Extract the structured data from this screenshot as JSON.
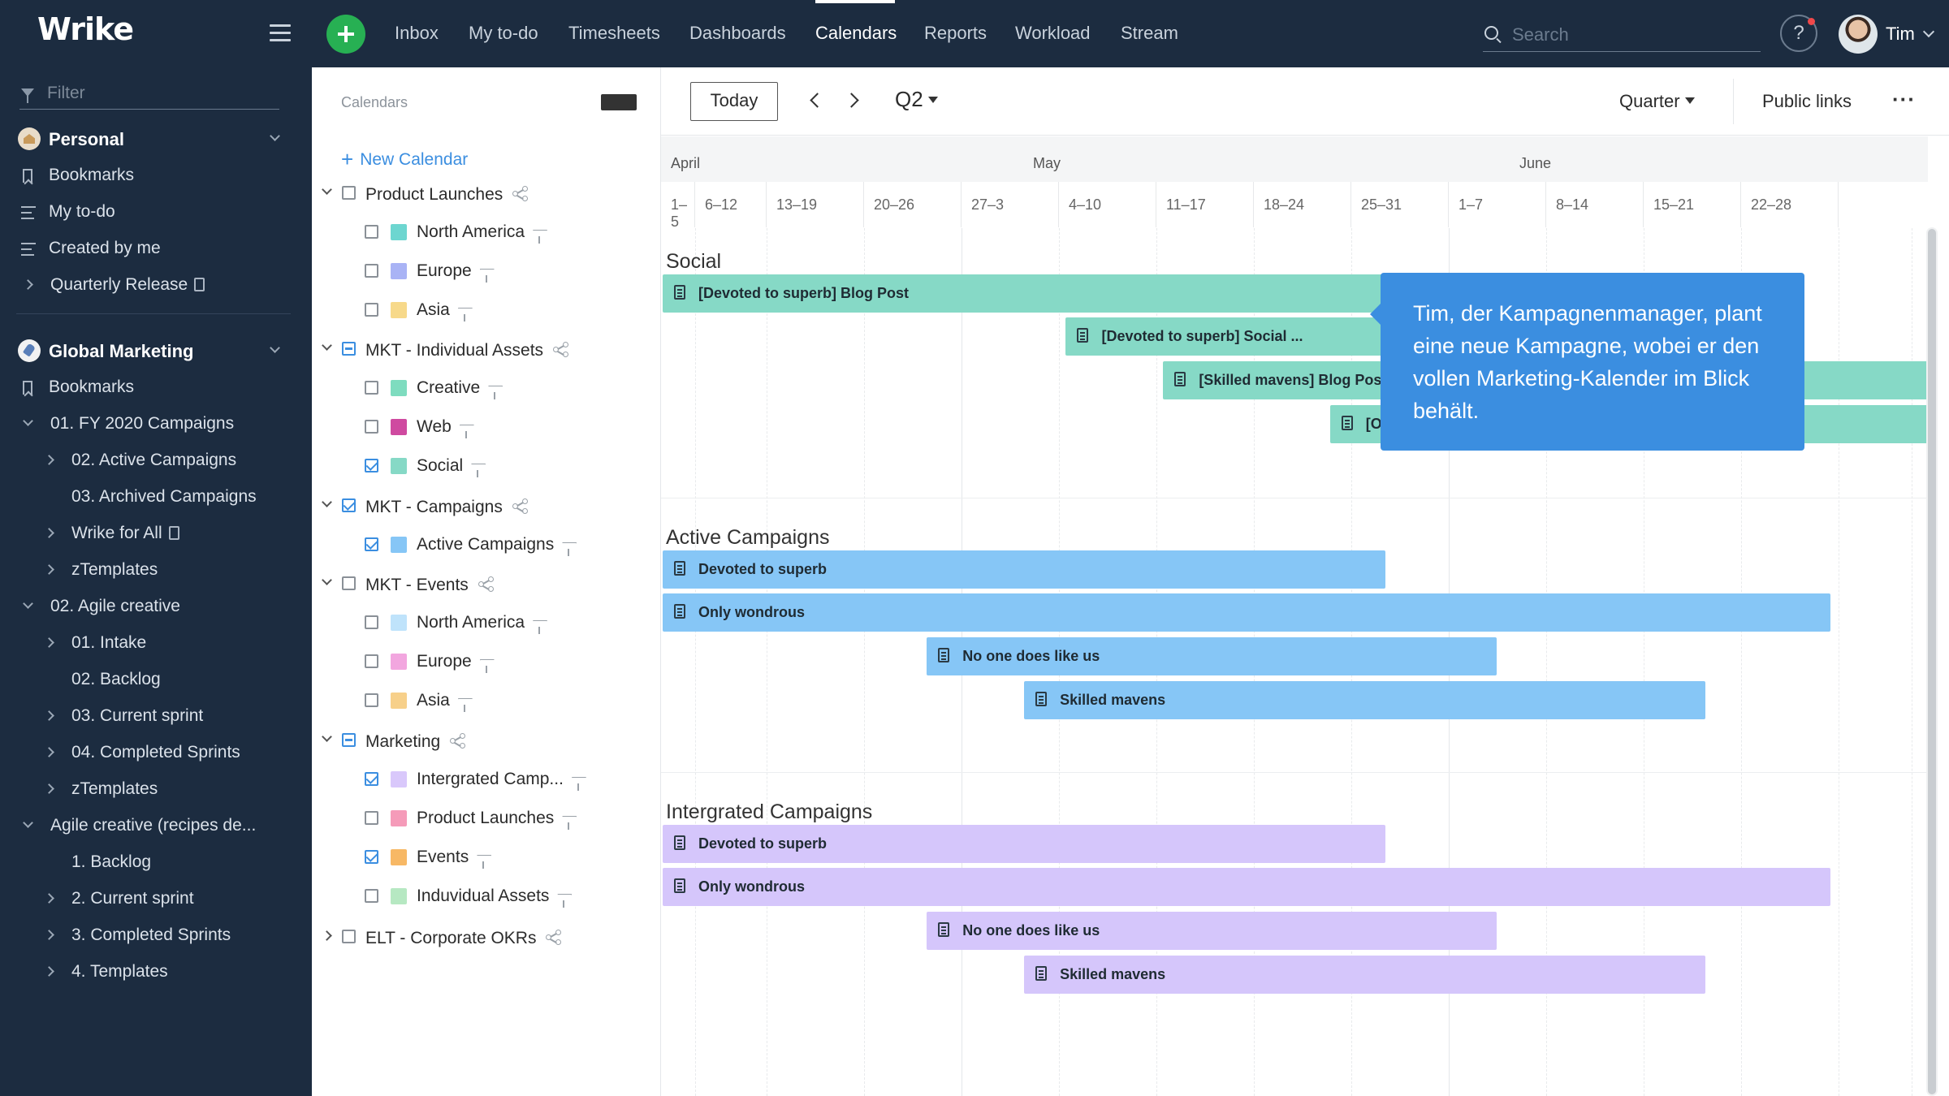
{
  "topbar": {
    "logo": "Wrike",
    "nav": [
      {
        "label": "Inbox",
        "active": false
      },
      {
        "label": "My to-do",
        "active": false
      },
      {
        "label": "Timesheets",
        "active": false
      },
      {
        "label": "Dashboards",
        "active": false
      },
      {
        "label": "Calendars",
        "active": true
      },
      {
        "label": "Reports",
        "active": false
      },
      {
        "label": "Workload",
        "active": false
      },
      {
        "label": "Stream",
        "active": false
      }
    ],
    "search_placeholder": "Search",
    "help_label": "?",
    "user_name": "Tim"
  },
  "sidebar": {
    "filter_placeholder": "Filter",
    "personal": {
      "title": "Personal",
      "items": [
        "Bookmarks",
        "My to-do",
        "Created by me",
        "Quarterly Release"
      ]
    },
    "global": {
      "title": "Global Marketing",
      "items": [
        "Bookmarks",
        "01. FY 2020 Campaigns",
        "02. Active Campaigns",
        "03. Archived Campaigns",
        "Wrike for All",
        "zTemplates",
        "02. Agile creative",
        "01. Intake",
        "02. Backlog",
        "03. Current sprint",
        "04. Completed Sprints",
        "zTemplates",
        "Agile creative (recipes de...",
        "1. Backlog",
        "2. Current sprint",
        "3. Completed Sprints",
        "4. Templates"
      ]
    }
  },
  "calendars": {
    "title": "Calendars",
    "new_calendar": "New Calendar",
    "rows": [
      {
        "label": "Product Launches",
        "level": 0,
        "state": "none",
        "expand": "down",
        "share": true
      },
      {
        "label": "North America",
        "level": 1,
        "state": "none",
        "color": "#6dd6d0"
      },
      {
        "label": "Europe",
        "level": 1,
        "state": "none",
        "color": "#a9b3f5"
      },
      {
        "label": "Asia",
        "level": 1,
        "state": "none",
        "color": "#f7d98a"
      },
      {
        "label": "MKT - Individual Assets",
        "level": 0,
        "state": "partial",
        "expand": "down",
        "share": true
      },
      {
        "label": "Creative",
        "level": 1,
        "state": "none",
        "color": "#7edcbf"
      },
      {
        "label": "Web",
        "level": 1,
        "state": "none",
        "color": "#cf4aa0"
      },
      {
        "label": "Social",
        "level": 1,
        "state": "checked",
        "color": "#86d9c6"
      },
      {
        "label": "MKT - Campaigns",
        "level": 0,
        "state": "checked",
        "expand": "down",
        "share": true
      },
      {
        "label": "Active Campaigns",
        "level": 1,
        "state": "checked",
        "color": "#86c6f6"
      },
      {
        "label": "MKT - Events",
        "level": 0,
        "state": "none",
        "expand": "down",
        "share": true
      },
      {
        "label": "North America",
        "level": 1,
        "state": "none",
        "color": "#bfe3fb"
      },
      {
        "label": "Europe",
        "level": 1,
        "state": "none",
        "color": "#f2a6df"
      },
      {
        "label": "Asia",
        "level": 1,
        "state": "none",
        "color": "#f7d08a"
      },
      {
        "label": "Marketing",
        "level": 0,
        "state": "partial",
        "expand": "down",
        "share": true
      },
      {
        "label": "Intergrated Camp...",
        "level": 1,
        "state": "checked",
        "color": "#d9c8fb"
      },
      {
        "label": "Product Launches",
        "level": 1,
        "state": "none",
        "color": "#f59bb9"
      },
      {
        "label": "Events",
        "level": 1,
        "state": "checked",
        "color": "#f7b865"
      },
      {
        "label": "Induvidual Assets",
        "level": 1,
        "state": "none",
        "color": "#b6e8c2"
      },
      {
        "label": "ELT - Corporate OKRs",
        "level": 0,
        "state": "none",
        "expand": "right",
        "share": true
      }
    ]
  },
  "toolbar": {
    "today": "Today",
    "period": "Q2",
    "scale": "Quarter",
    "public_links": "Public links",
    "more": "···"
  },
  "timeline": {
    "months": [
      "April",
      "May",
      "June"
    ],
    "weeks": [
      "1–5",
      "6–12",
      "13–19",
      "20–26",
      "27–3",
      "4–10",
      "11–17",
      "18–24",
      "25–31",
      "1–7",
      "8–14",
      "15–21",
      "22–28"
    ]
  },
  "lanes": [
    {
      "title": "Social",
      "color": "#86d9c6",
      "bars": [
        {
          "label": "[Devoted to superb] Blog Post",
          "start": "Apr 1",
          "end": "May 22"
        },
        {
          "label": "[Devoted to superb] Social ...",
          "start": "Apr 30",
          "end": "May 22"
        },
        {
          "label": "[Skilled mavens] Blog Post",
          "start": "May 7",
          "end": "Jun 30"
        },
        {
          "label": "[Only wondrous] Blog Post",
          "start": "May 19",
          "end": "Jun 30"
        }
      ]
    },
    {
      "title": "Active Campaigns",
      "color": "#86c6f6",
      "bars": [
        {
          "label": "Devoted to superb",
          "start": "Apr 1",
          "end": "May 22"
        },
        {
          "label": "Only wondrous",
          "start": "Apr 1",
          "end": "Jun 23"
        },
        {
          "label": "No one does like us",
          "start": "Apr 20",
          "end": "May 30"
        },
        {
          "label": "Skilled mavens",
          "start": "Apr 27",
          "end": "Jun 14"
        }
      ]
    },
    {
      "title": "Intergrated Campaigns",
      "color": "#d5c6fb",
      "bars": [
        {
          "label": "Devoted to superb",
          "start": "Apr 1",
          "end": "May 22"
        },
        {
          "label": "Only wondrous",
          "start": "Apr 1",
          "end": "Jun 23"
        },
        {
          "label": "No one does like us",
          "start": "Apr 20",
          "end": "May 30"
        },
        {
          "label": "Skilled mavens",
          "start": "Apr 27",
          "end": "Jun 14"
        }
      ]
    }
  ],
  "tooltip": "Tim, der Kampagnenmanager, plant eine neue Kampagne, wobei er den vollen Marketing-Kalender im Blick behält."
}
